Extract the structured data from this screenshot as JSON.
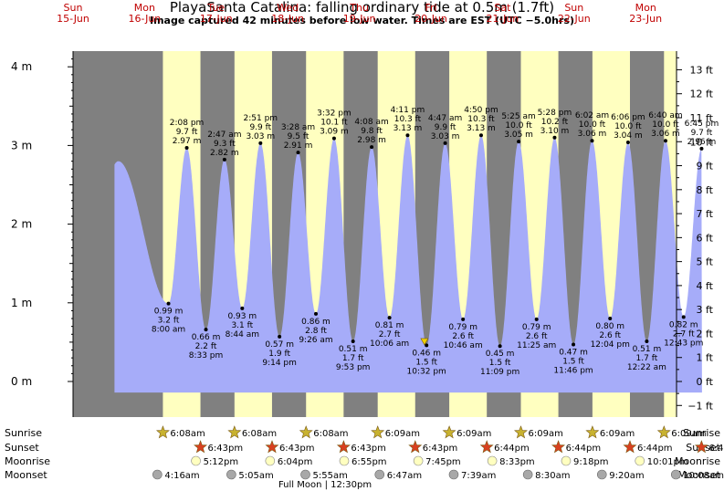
{
  "title": "PlayaSanta Catalina: falling  ordinary tide at 0.5m (1.7ft)",
  "subtitle": "Image captured 42 minutes before low water. Times are EST (UTC −5.0hrs)",
  "chart_data": {
    "type": "area",
    "title": "PlayaSanta Catalina: falling  ordinary tide at 0.5m (1.7ft)",
    "subtitle": "Image captured 42 minutes before low water. Times are EST (UTC −5.0hrs)",
    "x_unit": "hours from 15-Jun 00:00",
    "y_left_unit": "m",
    "y_right_unit": "ft",
    "ylim": [
      -0.15,
      4.25
    ],
    "y_left_ticks": [
      0,
      1,
      2,
      3,
      4
    ],
    "y_left_tick_labels": [
      "0 m",
      "1 m",
      "2 m",
      "3 m",
      "4 m"
    ],
    "y_right_ticks": [
      -1,
      0,
      1,
      2,
      3,
      4,
      5,
      6,
      7,
      8,
      9,
      10,
      11,
      12,
      13
    ],
    "y_right_tick_labels": [
      "−1 ft",
      "0 ft",
      "1 ft",
      "2 ft",
      "3 ft",
      "4 ft",
      "5 ft",
      "6 ft",
      "7 ft",
      "8 ft",
      "9 ft",
      "10 ft",
      "11 ft",
      "12 ft",
      "13 ft"
    ],
    "days": [
      {
        "day": "Sun",
        "date": "15-Jun"
      },
      {
        "day": "Mon",
        "date": "16-Jun"
      },
      {
        "day": "Tue",
        "date": "17-Jun"
      },
      {
        "day": "Wed",
        "date": "18-Jun"
      },
      {
        "day": "Thu",
        "date": "19-Jun"
      },
      {
        "day": "Fri",
        "date": "20-Jun"
      },
      {
        "day": "Sat",
        "date": "21-Jun"
      },
      {
        "day": "Sun",
        "date": "22-Jun"
      },
      {
        "day": "Mon",
        "date": "23-Jun"
      }
    ],
    "start_hour": 13.9,
    "end_hour": 210.9,
    "extremes": [
      {
        "t": 15.2,
        "m": 2.8,
        "type": "high",
        "labels": []
      },
      {
        "t": 32.0,
        "m": 0.99,
        "type": "low",
        "labels": [
          "0.99 m",
          "3.2 ft",
          "8:00 am"
        ]
      },
      {
        "t": 38.13,
        "m": 2.97,
        "type": "high",
        "labels": [
          "2:08 pm",
          "9.7 ft",
          "2.97 m"
        ]
      },
      {
        "t": 44.55,
        "m": 0.66,
        "type": "low",
        "labels": [
          "0.66 m",
          "2.2 ft",
          "8:33 pm"
        ]
      },
      {
        "t": 50.78,
        "m": 2.82,
        "type": "high",
        "labels": [
          "2:47 am",
          "9.3 ft",
          "2.82 m"
        ]
      },
      {
        "t": 56.73,
        "m": 0.93,
        "type": "low",
        "labels": [
          "0.93 m",
          "3.1 ft",
          "8:44 am"
        ]
      },
      {
        "t": 62.85,
        "m": 3.03,
        "type": "high",
        "labels": [
          "2:51 pm",
          "9.9 ft",
          "3.03 m"
        ]
      },
      {
        "t": 69.23,
        "m": 0.57,
        "type": "low",
        "labels": [
          "0.57 m",
          "1.9 ft",
          "9:14 pm"
        ]
      },
      {
        "t": 75.47,
        "m": 2.91,
        "type": "high",
        "labels": [
          "3:28 am",
          "9.5 ft",
          "2.91 m"
        ]
      },
      {
        "t": 81.43,
        "m": 0.86,
        "type": "low",
        "labels": [
          "0.86 m",
          "2.8 ft",
          "9:26 am"
        ]
      },
      {
        "t": 87.53,
        "m": 3.09,
        "type": "high",
        "labels": [
          "3:32 pm",
          "10.1 ft",
          "3.09 m"
        ]
      },
      {
        "t": 93.88,
        "m": 0.51,
        "type": "low",
        "labels": [
          "0.51 m",
          "1.7 ft",
          "9:53 pm"
        ]
      },
      {
        "t": 100.13,
        "m": 2.98,
        "type": "high",
        "labels": [
          "4:08 am",
          "9.8 ft",
          "2.98 m"
        ]
      },
      {
        "t": 106.1,
        "m": 0.81,
        "type": "low",
        "labels": [
          "0.81 m",
          "2.7 ft",
          "10:06 am"
        ]
      },
      {
        "t": 112.18,
        "m": 3.13,
        "type": "high",
        "labels": [
          "4:11 pm",
          "10.3 ft",
          "3.13 m"
        ]
      },
      {
        "t": 118.53,
        "m": 0.46,
        "type": "low",
        "labels": [
          "0.46 m",
          "1.5 ft",
          "10:32 pm"
        ]
      },
      {
        "t": 124.78,
        "m": 3.03,
        "type": "high",
        "labels": [
          "4:47 am",
          "9.9 ft",
          "3.03 m"
        ]
      },
      {
        "t": 130.77,
        "m": 0.79,
        "type": "low",
        "labels": [
          "0.79 m",
          "2.6 ft",
          "10:46 am"
        ]
      },
      {
        "t": 136.83,
        "m": 3.13,
        "type": "high",
        "labels": [
          "4:50 pm",
          "10.3 ft",
          "3.13 m"
        ]
      },
      {
        "t": 143.15,
        "m": 0.45,
        "type": "low",
        "labels": [
          "0.45 m",
          "1.5 ft",
          "11:09 pm"
        ]
      },
      {
        "t": 149.42,
        "m": 3.05,
        "type": "high",
        "labels": [
          "5:25 am",
          "10.0 ft",
          "3.05 m"
        ]
      },
      {
        "t": 155.42,
        "m": 0.79,
        "type": "low",
        "labels": [
          "0.79 m",
          "2.6 ft",
          "11:25 am"
        ]
      },
      {
        "t": 161.47,
        "m": 3.1,
        "type": "high",
        "labels": [
          "5:28 pm",
          "10.2 ft",
          "3.10 m"
        ]
      },
      {
        "t": 167.77,
        "m": 0.47,
        "type": "low",
        "labels": [
          "0.47 m",
          "1.5 ft",
          "11:46 pm"
        ]
      },
      {
        "t": 174.03,
        "m": 3.06,
        "type": "high",
        "labels": [
          "6:02 am",
          "10.0 ft",
          "3.06 m"
        ]
      },
      {
        "t": 180.07,
        "m": 0.8,
        "type": "low",
        "labels": [
          "0.80 m",
          "2.6 ft",
          "12:04 pm"
        ]
      },
      {
        "t": 186.1,
        "m": 3.04,
        "type": "high",
        "labels": [
          "6:06 pm",
          "10.0 ft",
          "3.04 m"
        ]
      },
      {
        "t": 192.37,
        "m": 0.51,
        "type": "low",
        "labels": [
          "0.51 m",
          "1.7 ft",
          "12:22 am"
        ]
      },
      {
        "t": 198.67,
        "m": 3.06,
        "type": "high",
        "labels": [
          "6:40 am",
          "10.0 ft",
          "3.06 m"
        ]
      },
      {
        "t": 204.72,
        "m": 0.82,
        "type": "low",
        "labels": [
          "0.82 m",
          "2.7 ft",
          "12:43 pm"
        ]
      },
      {
        "t": 210.75,
        "m": 2.96,
        "type": "high",
        "labels": [
          "6:45 pm",
          "9.7 ft",
          "2.96 m"
        ]
      }
    ],
    "current_marker": {
      "t": 117.83,
      "m": 0.5
    },
    "daylight": [
      {
        "rise": 30.13,
        "set": 42.72
      },
      {
        "rise": 54.13,
        "set": 66.72
      },
      {
        "rise": 78.13,
        "set": 90.72
      },
      {
        "rise": 102.15,
        "set": 114.72
      },
      {
        "rise": 126.15,
        "set": 138.73
      },
      {
        "rise": 150.15,
        "set": 162.73
      },
      {
        "rise": 174.15,
        "set": 186.73
      },
      {
        "rise": 198.15,
        "set": 210.73
      }
    ],
    "rows": {
      "sunrise": {
        "label": "Sunrise",
        "items": [
          {
            "t": 30.13,
            "text": "6:08am"
          },
          {
            "t": 54.13,
            "text": "6:08am"
          },
          {
            "t": 78.13,
            "text": "6:08am"
          },
          {
            "t": 102.15,
            "text": "6:09am"
          },
          {
            "t": 126.15,
            "text": "6:09am"
          },
          {
            "t": 150.15,
            "text": "6:09am"
          },
          {
            "t": 174.15,
            "text": "6:09am"
          },
          {
            "t": 198.15,
            "text": "6:09am"
          }
        ]
      },
      "sunset": {
        "label": "Sunset",
        "items": [
          {
            "t": 42.72,
            "text": "6:43pm"
          },
          {
            "t": 66.72,
            "text": "6:43pm"
          },
          {
            "t": 90.72,
            "text": "6:43pm"
          },
          {
            "t": 114.72,
            "text": "6:43pm"
          },
          {
            "t": 138.73,
            "text": "6:44pm"
          },
          {
            "t": 162.73,
            "text": "6:44pm"
          },
          {
            "t": 186.73,
            "text": "6:44pm"
          },
          {
            "t": 210.73,
            "text": "6:44pm"
          }
        ]
      },
      "moonrise": {
        "label": "Moonrise",
        "items": [
          {
            "t": 41.2,
            "text": "5:12pm"
          },
          {
            "t": 66.07,
            "text": "6:04pm"
          },
          {
            "t": 90.92,
            "text": "6:55pm"
          },
          {
            "t": 115.75,
            "text": "7:45pm"
          },
          {
            "t": 140.55,
            "text": "8:33pm"
          },
          {
            "t": 165.3,
            "text": "9:18pm"
          },
          {
            "t": 190.02,
            "text": "10:01pm"
          }
        ]
      },
      "moonset": {
        "label": "Moonset",
        "items": [
          {
            "t": 28.27,
            "text": "4:16am"
          },
          {
            "t": 53.08,
            "text": "5:05am"
          },
          {
            "t": 77.92,
            "text": "5:55am"
          },
          {
            "t": 102.78,
            "text": "6:47am"
          },
          {
            "t": 127.65,
            "text": "7:39am"
          },
          {
            "t": 152.5,
            "text": "8:30am"
          },
          {
            "t": 177.33,
            "text": "9:20am"
          },
          {
            "t": 202.13,
            "text": "10:08am"
          }
        ]
      }
    },
    "phase_note": {
      "t": 84.5,
      "text": "Full Moon | 12:30pm"
    },
    "colors": {
      "night": "#808080",
      "day": "#ffffc0",
      "water": "#a6acf9",
      "day_header": "#c00000",
      "sunrise_star": "#c8b230",
      "sunset_star": "#d84020",
      "moonrise": "#ffffc0",
      "moonset": "#a8a8a8",
      "current_marker": "#f0d000"
    }
  }
}
